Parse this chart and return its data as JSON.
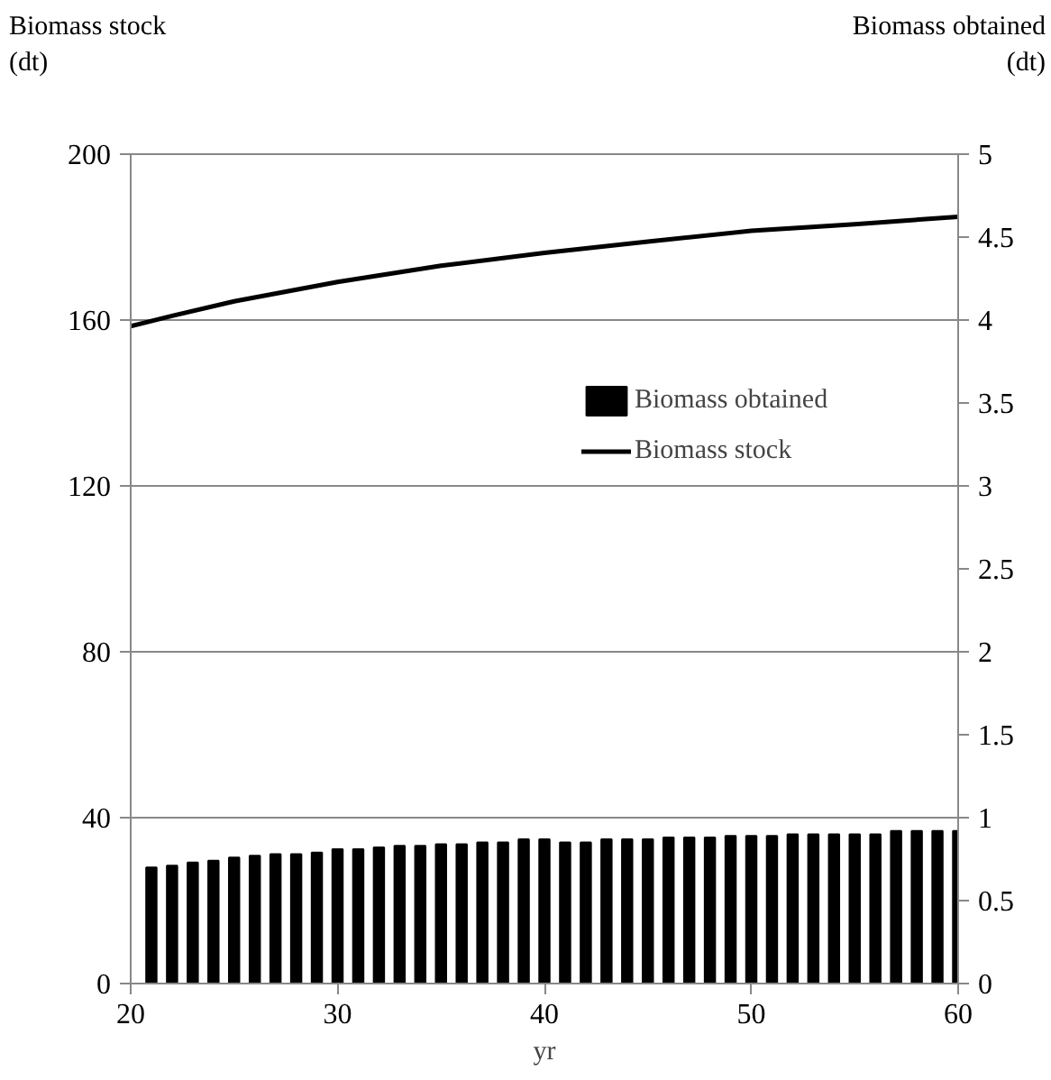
{
  "chart_data": {
    "type": "bar",
    "xlabel": "yr",
    "ylabel": "Biomass stock\n(dt)",
    "y2label": "Biomass obtained\n(dt)",
    "xlim": [
      20,
      60
    ],
    "xticks": [
      20,
      30,
      40,
      50,
      60
    ],
    "ylim": [
      0,
      200
    ],
    "yticks": [
      0,
      40,
      80,
      120,
      160,
      200
    ],
    "y2lim": [
      0,
      5
    ],
    "y2ticks": [
      0,
      0.5,
      1,
      1.5,
      2,
      2.5,
      3,
      3.5,
      4,
      4.5,
      5
    ],
    "grid": "y",
    "legend": "top right",
    "series": [
      {
        "name": "Biomass obtained",
        "axis": "y2",
        "color": "#000000",
        "x": [
          21,
          22,
          23,
          24,
          25,
          26,
          27,
          28,
          29,
          30,
          31,
          32,
          33,
          34,
          35,
          36,
          37,
          38,
          39,
          40,
          41,
          42,
          43,
          44,
          45,
          46,
          47,
          48,
          49,
          50,
          51,
          52,
          53,
          54,
          55,
          56,
          57,
          58,
          59,
          60
        ],
        "values": [
          0.7,
          0.71,
          0.73,
          0.74,
          0.76,
          0.77,
          0.78,
          0.78,
          0.79,
          0.81,
          0.81,
          0.82,
          0.83,
          0.83,
          0.84,
          0.84,
          0.85,
          0.85,
          0.87,
          0.87,
          0.85,
          0.85,
          0.87,
          0.87,
          0.87,
          0.88,
          0.88,
          0.88,
          0.89,
          0.89,
          0.89,
          0.9,
          0.9,
          0.9,
          0.9,
          0.9,
          0.92,
          0.92,
          0.92,
          0.92
        ]
      },
      {
        "name": "Biomass stock",
        "type": "line",
        "color": "#000000",
        "line_style": "solid",
        "x": [
          20,
          22,
          25,
          30,
          35,
          40,
          45,
          50,
          55,
          60
        ],
        "values": [
          158.5,
          161,
          164.5,
          169.2,
          173.1,
          176.2,
          178.9,
          181.5,
          183.1,
          184.9
        ]
      }
    ]
  }
}
